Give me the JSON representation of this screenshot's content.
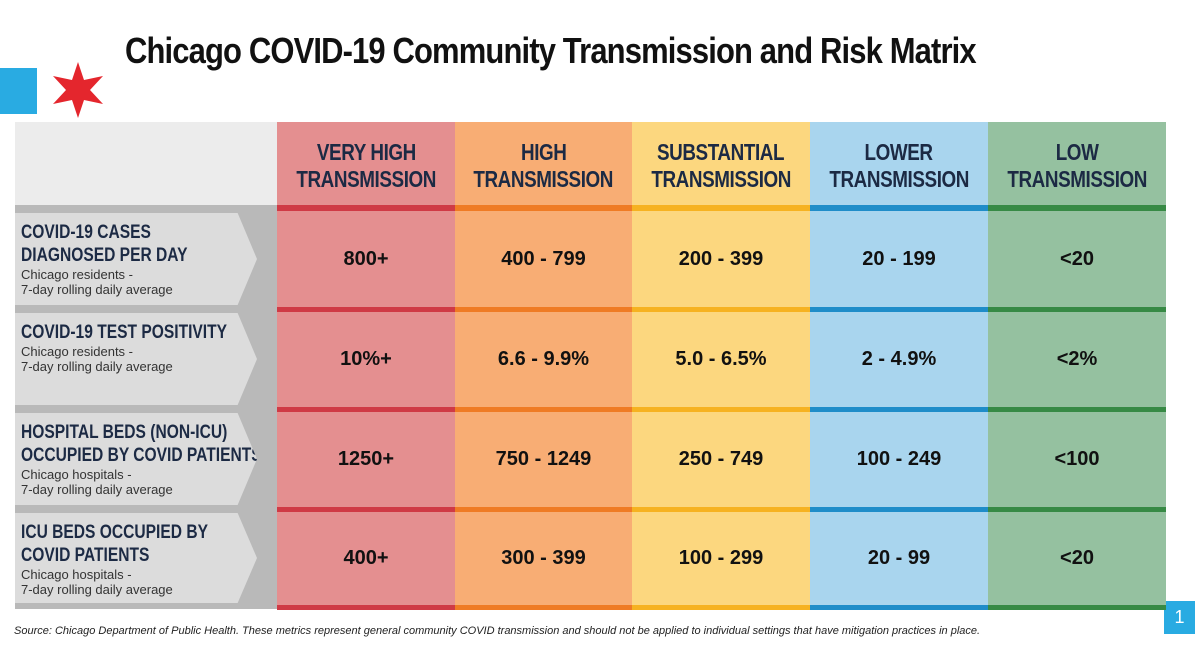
{
  "title": "Chicago COVID-19 Community Transmission and Risk Matrix",
  "table": {
    "columns": [
      [
        "VERY HIGH",
        "TRANSMISSION"
      ],
      [
        "HIGH",
        "TRANSMISSION"
      ],
      [
        "SUBSTANTIAL",
        "TRANSMISSION"
      ],
      [
        "LOWER",
        "TRANSMISSION"
      ],
      [
        "LOW",
        "TRANSMISSION"
      ]
    ],
    "rows": [
      {
        "metric": [
          "COVID-19 CASES",
          "DIAGNOSED PER DAY"
        ],
        "note": [
          "Chicago residents -",
          "7-day rolling daily average"
        ],
        "cells": [
          "800+",
          "400 - 799",
          "200 - 399",
          "20 - 199",
          "<20"
        ]
      },
      {
        "metric": [
          "COVID-19 TEST POSITIVITY"
        ],
        "note": [
          "Chicago residents -",
          "7-day rolling daily average"
        ],
        "cells": [
          "10%+",
          "6.6 - 9.9%",
          "5.0 - 6.5%",
          "2 - 4.9%",
          "<2%"
        ]
      },
      {
        "metric": [
          "HOSPITAL BEDS (NON-ICU)",
          "OCCUPIED BY COVID PATIENTS"
        ],
        "note": [
          "Chicago hospitals -",
          "7-day rolling daily average"
        ],
        "cells": [
          "1250+",
          "750 - 1249",
          "250 -  749",
          "100 - 249",
          "<100"
        ]
      },
      {
        "metric": [
          "ICU BEDS OCCUPIED BY",
          "COVID PATIENTS"
        ],
        "note": [
          "Chicago hospitals -",
          "7-day rolling daily average"
        ],
        "cells": [
          "400+",
          "300 - 399",
          "100 - 299",
          "20 - 99",
          "<20"
        ]
      }
    ]
  },
  "footer": {
    "source": "Source: Chicago Department of Public Health. These metrics represent general community COVID transmission and should not be applied to individual settings that have mitigation practices in place.",
    "page": "1"
  }
}
